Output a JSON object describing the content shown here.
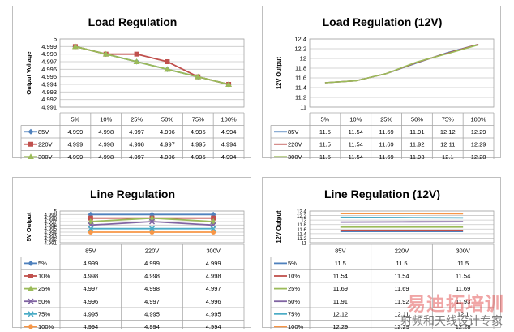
{
  "chart_data": [
    {
      "type": "line",
      "title": "Load Regulation",
      "ylabel": "Output Voltage",
      "xlabel": "",
      "categories": [
        "5%",
        "10%",
        "25%",
        "50%",
        "75%",
        "100%"
      ],
      "ylim": [
        4.991,
        5
      ],
      "ytick_labels": [
        "5",
        "4.999",
        "4.998",
        "4.997",
        "4.996",
        "4.995",
        "4.994",
        "4.993",
        "4.992",
        "4.991"
      ],
      "grid": true,
      "legend": "table-below",
      "series": [
        {
          "name": "85V",
          "color": "#4f81bd",
          "marker": "diamond",
          "values": [
            4.999,
            4.998,
            4.997,
            4.996,
            4.995,
            4.994
          ]
        },
        {
          "name": "220V",
          "color": "#c0504d",
          "marker": "square",
          "values": [
            4.999,
            4.998,
            4.998,
            4.997,
            4.995,
            4.994
          ]
        },
        {
          "name": "300V",
          "color": "#9bbb59",
          "marker": "triangle",
          "values": [
            4.999,
            4.998,
            4.997,
            4.996,
            4.995,
            4.994
          ]
        }
      ]
    },
    {
      "type": "line",
      "title": "Load Regulation (12V)",
      "ylabel": "12V Output",
      "xlabel": "",
      "categories": [
        "5%",
        "10%",
        "25%",
        "50%",
        "75%",
        "100%"
      ],
      "ylim": [
        11,
        12.4
      ],
      "ytick_labels": [
        "12.4",
        "12.2",
        "12",
        "11.8",
        "11.6",
        "11.4",
        "11.2",
        "11"
      ],
      "grid": true,
      "legend": "table-below",
      "series": [
        {
          "name": "85V",
          "color": "#4f81bd",
          "marker": "none",
          "values": [
            11.5,
            11.54,
            11.69,
            11.91,
            12.12,
            12.29
          ]
        },
        {
          "name": "220V",
          "color": "#c0504d",
          "marker": "none",
          "values": [
            11.5,
            11.54,
            11.69,
            11.92,
            12.11,
            12.29
          ]
        },
        {
          "name": "300V",
          "color": "#9bbb59",
          "marker": "none",
          "values": [
            11.5,
            11.54,
            11.69,
            11.93,
            12.1,
            12.28
          ]
        }
      ]
    },
    {
      "type": "line",
      "title": "Line Regulation",
      "ylabel": "5V Output",
      "xlabel": "",
      "categories": [
        "85V",
        "220V",
        "300V"
      ],
      "ylim": [
        4.991,
        5
      ],
      "ytick_labels": [
        "5",
        "4.999",
        "4.998",
        "4.997",
        "4.996",
        "4.995",
        "4.994",
        "4.993",
        "4.992",
        "4.991"
      ],
      "grid": true,
      "legend": "table-below",
      "series": [
        {
          "name": "5%",
          "color": "#4f81bd",
          "marker": "diamond",
          "values": [
            4.999,
            4.999,
            4.999
          ]
        },
        {
          "name": "10%",
          "color": "#c0504d",
          "marker": "square",
          "values": [
            4.998,
            4.998,
            4.998
          ]
        },
        {
          "name": "25%",
          "color": "#9bbb59",
          "marker": "triangle",
          "values": [
            4.997,
            4.998,
            4.997
          ]
        },
        {
          "name": "50%",
          "color": "#8064a2",
          "marker": "x",
          "values": [
            4.996,
            4.997,
            4.996
          ]
        },
        {
          "name": "75%",
          "color": "#4bacc6",
          "marker": "x",
          "values": [
            4.995,
            4.995,
            4.995
          ]
        },
        {
          "name": "100%",
          "color": "#f79646",
          "marker": "circle",
          "values": [
            4.994,
            4.994,
            4.994
          ]
        }
      ]
    },
    {
      "type": "line",
      "title": "Line Regulation (12V)",
      "ylabel": "12V Output",
      "xlabel": "",
      "categories": [
        "85V",
        "220V",
        "300V"
      ],
      "ylim": [
        11,
        12.4
      ],
      "ytick_labels": [
        "12.4",
        "12.2",
        "12",
        "11.8",
        "11.6",
        "11.4",
        "11.2",
        "11"
      ],
      "grid": true,
      "legend": "table-below",
      "series": [
        {
          "name": "5%",
          "color": "#4f81bd",
          "marker": "none",
          "values": [
            11.5,
            11.5,
            11.5
          ]
        },
        {
          "name": "10%",
          "color": "#c0504d",
          "marker": "none",
          "values": [
            11.54,
            11.54,
            11.54
          ]
        },
        {
          "name": "25%",
          "color": "#9bbb59",
          "marker": "none",
          "values": [
            11.69,
            11.69,
            11.69
          ]
        },
        {
          "name": "50%",
          "color": "#8064a2",
          "marker": "none",
          "values": [
            11.91,
            11.92,
            11.93
          ]
        },
        {
          "name": "75%",
          "color": "#4bacc6",
          "marker": "none",
          "values": [
            12.12,
            12.11,
            12.1
          ]
        },
        {
          "name": "100%",
          "color": "#f79646",
          "marker": "none",
          "values": [
            12.29,
            12.29,
            12.28
          ]
        }
      ]
    }
  ],
  "watermark": {
    "main_text": "易迪拓培训",
    "sub_text": "射频和天线设计专家"
  }
}
